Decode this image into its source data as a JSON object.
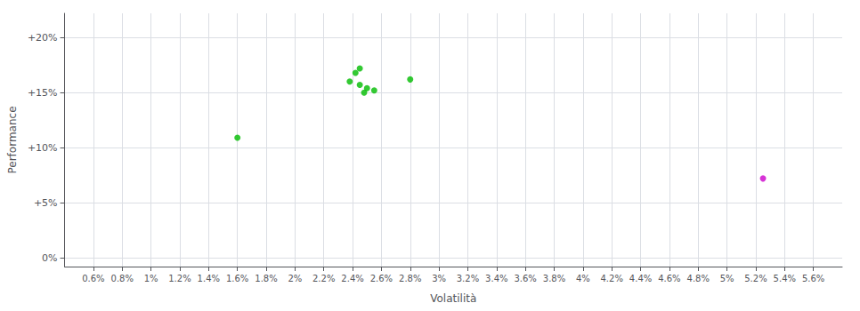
{
  "chart_data": {
    "type": "scatter",
    "xlabel": "Volatilità",
    "ylabel": "Performance",
    "xlim": [
      0.004,
      0.058
    ],
    "ylim": [
      -0.008,
      0.222
    ],
    "xticks": [
      {
        "value": 0.006,
        "label": "0.6%"
      },
      {
        "value": 0.008,
        "label": "0.8%"
      },
      {
        "value": 0.01,
        "label": "1%"
      },
      {
        "value": 0.012,
        "label": "1.2%"
      },
      {
        "value": 0.014,
        "label": "1.4%"
      },
      {
        "value": 0.016,
        "label": "1.6%"
      },
      {
        "value": 0.018,
        "label": "1.8%"
      },
      {
        "value": 0.02,
        "label": "2%"
      },
      {
        "value": 0.022,
        "label": "2.2%"
      },
      {
        "value": 0.024,
        "label": "2.4%"
      },
      {
        "value": 0.026,
        "label": "2.6%"
      },
      {
        "value": 0.028,
        "label": "2.8%"
      },
      {
        "value": 0.03,
        "label": "3%"
      },
      {
        "value": 0.032,
        "label": "3.2%"
      },
      {
        "value": 0.034,
        "label": "3.4%"
      },
      {
        "value": 0.036,
        "label": "3.6%"
      },
      {
        "value": 0.038,
        "label": "3.8%"
      },
      {
        "value": 0.04,
        "label": "4%"
      },
      {
        "value": 0.042,
        "label": "4.2%"
      },
      {
        "value": 0.044,
        "label": "4.4%"
      },
      {
        "value": 0.046,
        "label": "4.6%"
      },
      {
        "value": 0.048,
        "label": "4.8%"
      },
      {
        "value": 0.05,
        "label": "5%"
      },
      {
        "value": 0.052,
        "label": "5.2%"
      },
      {
        "value": 0.054,
        "label": "5.4%"
      },
      {
        "value": 0.056,
        "label": "5.6%"
      }
    ],
    "yticks": [
      {
        "value": 0.0,
        "label": "0%"
      },
      {
        "value": 0.05,
        "label": "+5%"
      },
      {
        "value": 0.1,
        "label": "+10%"
      },
      {
        "value": 0.15,
        "label": "+15%"
      },
      {
        "value": 0.2,
        "label": "+20%"
      }
    ],
    "grid": true,
    "series": [
      {
        "color": "#00bb00",
        "x": [
          0.016,
          0.0245,
          0.0242,
          0.0238,
          0.0245,
          0.025,
          0.0255,
          0.0248,
          0.028
        ],
        "values": [
          0.109,
          0.172,
          0.168,
          0.16,
          0.157,
          0.154,
          0.152,
          0.15,
          0.162
        ]
      },
      {
        "color": "#cc00cc",
        "x": [
          0.0525
        ],
        "values": [
          0.072
        ]
      }
    ]
  }
}
